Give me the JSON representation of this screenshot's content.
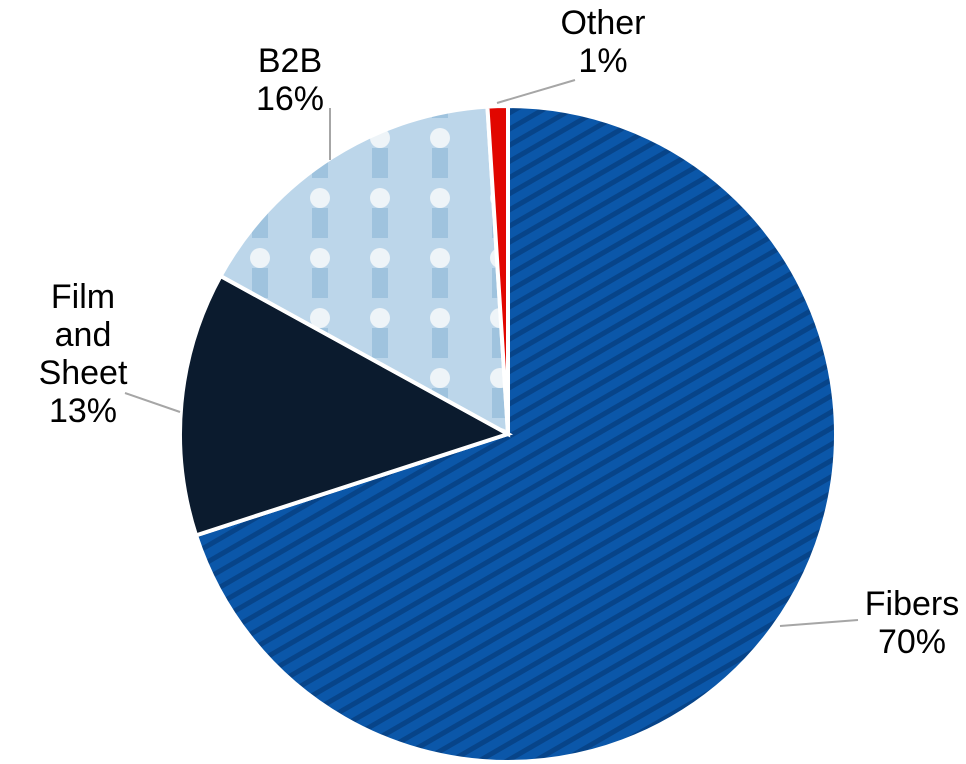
{
  "chart_data": {
    "type": "pie",
    "categories": [
      "Fibers",
      "Film and Sheet",
      "B2B",
      "Other"
    ],
    "values": [
      70,
      13,
      16,
      1
    ],
    "value_labels": [
      "70%",
      "13%",
      "16%",
      "1%"
    ],
    "colors": [
      "#0b57a9",
      "#0b1b2e",
      "#bcd6ea",
      "#e10600"
    ]
  }
}
